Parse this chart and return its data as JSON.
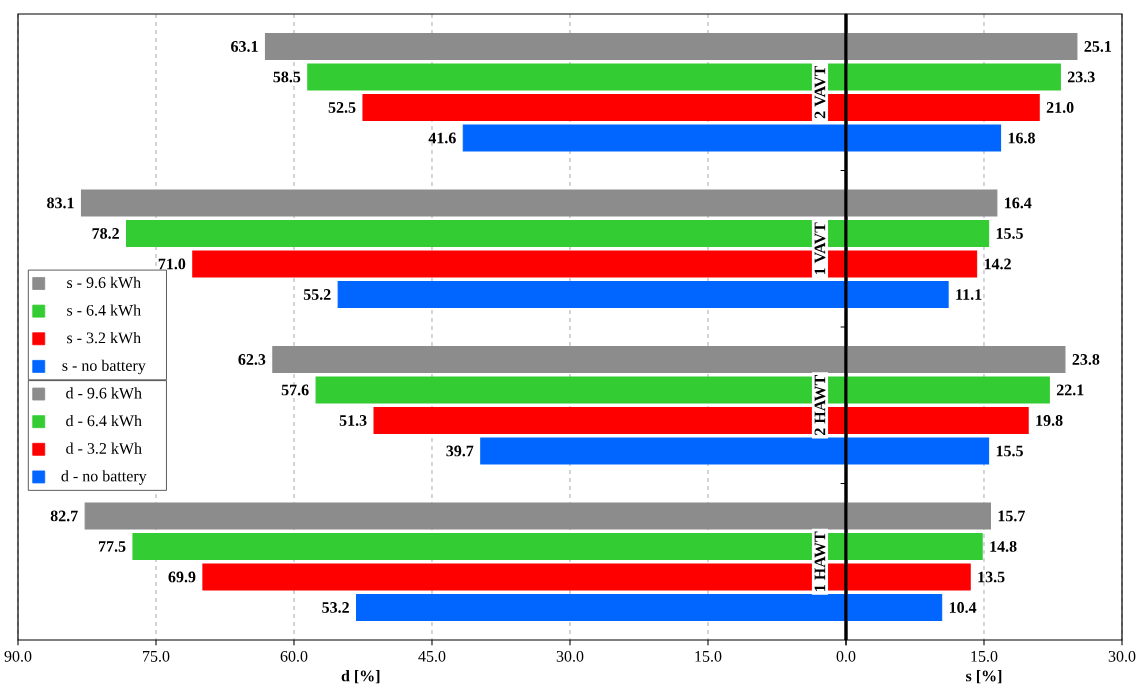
{
  "chart_data": [
    {
      "type": "bar",
      "orientation": "horizontal",
      "xlabel": "d [%]",
      "categories": [
        "2 VAVT",
        "1 VAVT",
        "2 HAWT",
        "1 HAWT"
      ],
      "series": [
        {
          "name": "d - 9.6 kWh",
          "color": "#8c8c8c",
          "values": [
            63.1,
            83.1,
            62.3,
            82.7
          ],
          "value_labels": [
            "63.1",
            "83.1",
            "62.3",
            "82.7"
          ]
        },
        {
          "name": "d - 6.4 kWh",
          "color": "#33cc33",
          "values": [
            58.5,
            78.2,
            57.6,
            77.5
          ],
          "value_labels": [
            "58.5",
            "78.2",
            "57.6",
            "77.5"
          ]
        },
        {
          "name": "d - 3.2 kWh",
          "color": "#ff0000",
          "values": [
            52.5,
            71.0,
            51.3,
            69.9
          ],
          "value_labels": [
            "52.5",
            "71.0",
            "51.3",
            "69.9"
          ]
        },
        {
          "name": "d - no battery",
          "color": "#0066ff",
          "values": [
            41.6,
            55.2,
            39.7,
            53.2
          ],
          "value_labels": [
            "41.6",
            "55.2",
            "39.7",
            "53.2"
          ]
        }
      ],
      "xlim": [
        90,
        0
      ],
      "xticks": [
        {
          "value": 90,
          "label": "90.0"
        },
        {
          "value": 75,
          "label": "75.0"
        },
        {
          "value": 60,
          "label": "60.0"
        },
        {
          "value": 45,
          "label": "45.0"
        },
        {
          "value": 30,
          "label": "30.0"
        },
        {
          "value": 15,
          "label": "15.0"
        },
        {
          "value": 0,
          "label": "0.0"
        }
      ],
      "grid": "x",
      "legend": "left"
    },
    {
      "type": "bar",
      "orientation": "horizontal",
      "xlabel": "s [%]",
      "categories": [
        null,
        null,
        null,
        null
      ],
      "series": [
        {
          "name": "s - 9.6 kWh",
          "color": "#8c8c8c",
          "values": [
            25.1,
            16.4,
            23.8,
            15.7
          ],
          "value_labels": [
            "25.1",
            "16.4",
            "23.8",
            "15.7"
          ]
        },
        {
          "name": "s - 6.4 kWh",
          "color": "#33cc33",
          "values": [
            23.3,
            15.5,
            22.1,
            14.8
          ],
          "value_labels": [
            "23.3",
            "15.5",
            "22.1",
            "14.8"
          ]
        },
        {
          "name": "s - 3.2 kWh",
          "color": "#ff0000",
          "values": [
            21.0,
            14.2,
            19.8,
            13.5
          ],
          "value_labels": [
            "21.0",
            "14.2",
            "19.8",
            "13.5"
          ]
        },
        {
          "name": "s - no battery",
          "color": "#0066ff",
          "values": [
            16.8,
            11.1,
            15.5,
            10.4
          ],
          "value_labels": [
            "16.8",
            "11.1",
            "15.5",
            "10.4"
          ]
        }
      ],
      "xlim": [
        0,
        30
      ],
      "xticks": [
        {
          "value": 0,
          "label": null
        },
        {
          "value": 15,
          "label": "15.0"
        },
        {
          "value": 30,
          "label": "30.0"
        }
      ],
      "grid": "x",
      "legend": "left",
      "tick_labels": "x"
    }
  ]
}
